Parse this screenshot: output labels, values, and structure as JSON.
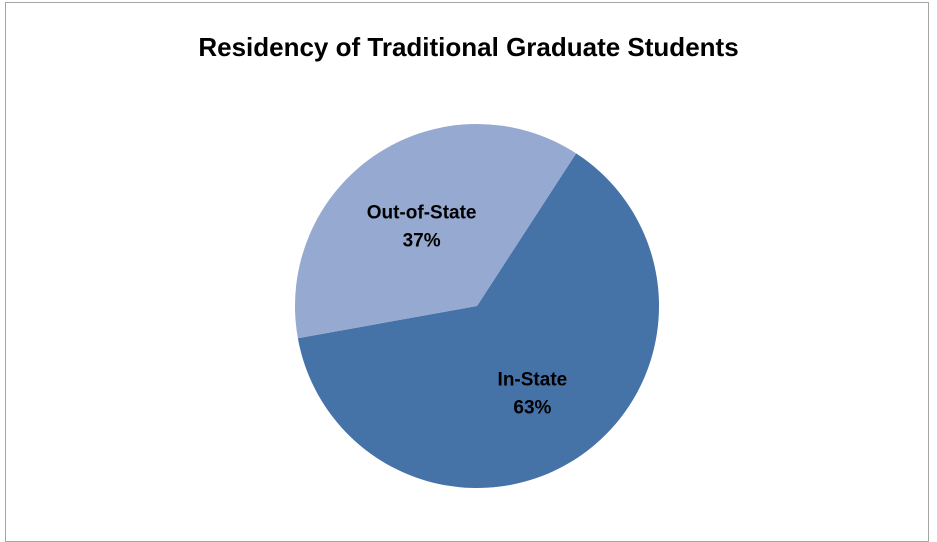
{
  "chart_data": {
    "type": "pie",
    "title": "Residency of Traditional Graduate Students",
    "slices": [
      {
        "label": "In-State",
        "value": 63,
        "display": "63%",
        "color": "#4572a7"
      },
      {
        "label": "Out-of-State",
        "value": 37,
        "display": "37%",
        "color": "#95a9d1"
      }
    ],
    "legend": "none"
  }
}
